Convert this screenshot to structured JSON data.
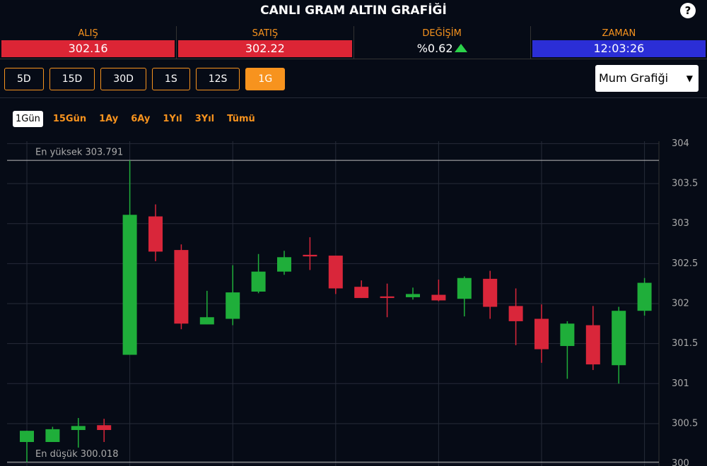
{
  "header": {
    "title": "CANLI GRAM ALTIN GRAFİĞİ",
    "help": "?"
  },
  "quotes": [
    {
      "label": "ALIŞ",
      "value": "302.16"
    },
    {
      "label": "SATIŞ",
      "value": "302.22"
    },
    {
      "label": "DEĞİŞİM",
      "value": "%0.62"
    },
    {
      "label": "ZAMAN",
      "value": "12:03:26"
    }
  ],
  "period_buttons": [
    "5D",
    "15D",
    "30D",
    "1S",
    "12S",
    "1G"
  ],
  "chart_type_select": "Mum Grafiği",
  "range_buttons": [
    "1Gün",
    "15Gün",
    "1Ay",
    "6Ay",
    "1Yıl",
    "3Yıl",
    "Tümü"
  ],
  "chart_data": {
    "type": "candlestick",
    "open": [
      300.27,
      300.27,
      300.42,
      300.48,
      301.36,
      303.09,
      302.67,
      301.74,
      301.81,
      302.15,
      302.4,
      302.61,
      302.6,
      302.21,
      302.09,
      302.08,
      302.11,
      302.06,
      302.31,
      301.97,
      301.81,
      301.47,
      301.73,
      301.23,
      301.91
    ],
    "high": [
      300.41,
      300.46,
      300.57,
      300.56,
      303.791,
      303.24,
      302.74,
      302.16,
      302.48,
      302.62,
      302.66,
      302.83,
      302.6,
      302.29,
      302.25,
      302.2,
      302.3,
      302.34,
      302.41,
      302.19,
      301.99,
      301.78,
      301.97,
      301.96,
      302.32
    ],
    "low": [
      300.018,
      300.27,
      300.2,
      300.27,
      301.36,
      302.53,
      301.68,
      301.74,
      301.73,
      302.13,
      302.36,
      302.42,
      302.12,
      302.07,
      301.83,
      302.05,
      302.03,
      301.84,
      301.81,
      301.48,
      301.26,
      301.06,
      301.17,
      301.0,
      301.85
    ],
    "close": [
      300.41,
      300.43,
      300.47,
      300.42,
      303.11,
      302.65,
      301.75,
      301.83,
      302.14,
      302.4,
      302.58,
      302.59,
      302.19,
      302.07,
      302.07,
      302.12,
      302.04,
      302.32,
      301.96,
      301.78,
      301.43,
      301.75,
      301.24,
      301.91,
      302.26
    ],
    "up_color": "#1fae3a",
    "down_color": "#d9263a",
    "max_line": {
      "value": 303.791,
      "label": "En yüksek 303.791"
    },
    "min_line": {
      "value": 300.018,
      "label": "En düşük 300.018"
    },
    "ylim": [
      299.97,
      304.03
    ],
    "yticks": [
      300,
      300.5,
      301,
      301.5,
      302,
      302.5,
      303,
      303.5,
      304
    ],
    "grid": true
  }
}
